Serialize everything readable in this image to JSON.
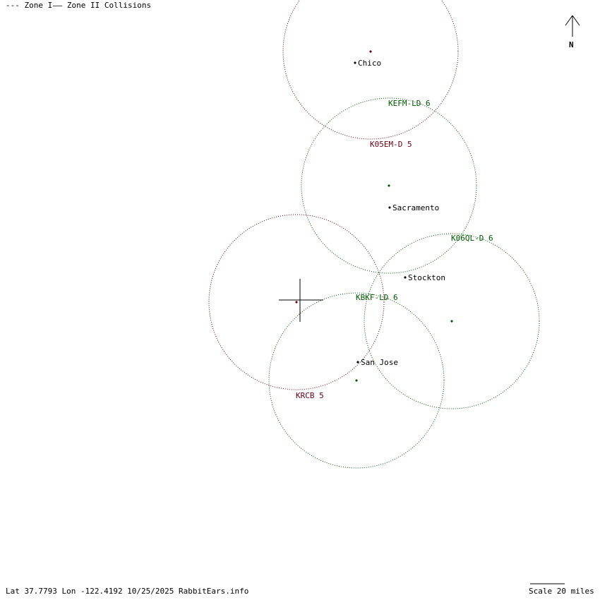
{
  "legend": {
    "zone1": "--- Zone I",
    "zone2": "—— Zone II Collisions"
  },
  "north": "N",
  "footer": {
    "status": "Lat 37.7793 Lon -122.4192 10/25/2025 RabbitEars.info",
    "scale": "Scale 20 miles"
  },
  "colors": {
    "channel5": "#660011",
    "channel6": "#005500",
    "city": "#000000"
  },
  "stations": [
    {
      "label": "KEFM-LD 6",
      "channel": 6
    },
    {
      "label": "K05EM-D 5",
      "channel": 5
    },
    {
      "label": "K06QL-D 6",
      "channel": 6
    },
    {
      "label": "KBKF-LD 6",
      "channel": 6
    },
    {
      "label": "KRCB 5",
      "channel": 5
    }
  ],
  "cities": [
    "Chico",
    "Sacramento",
    "Stockton",
    "San Jose"
  ]
}
